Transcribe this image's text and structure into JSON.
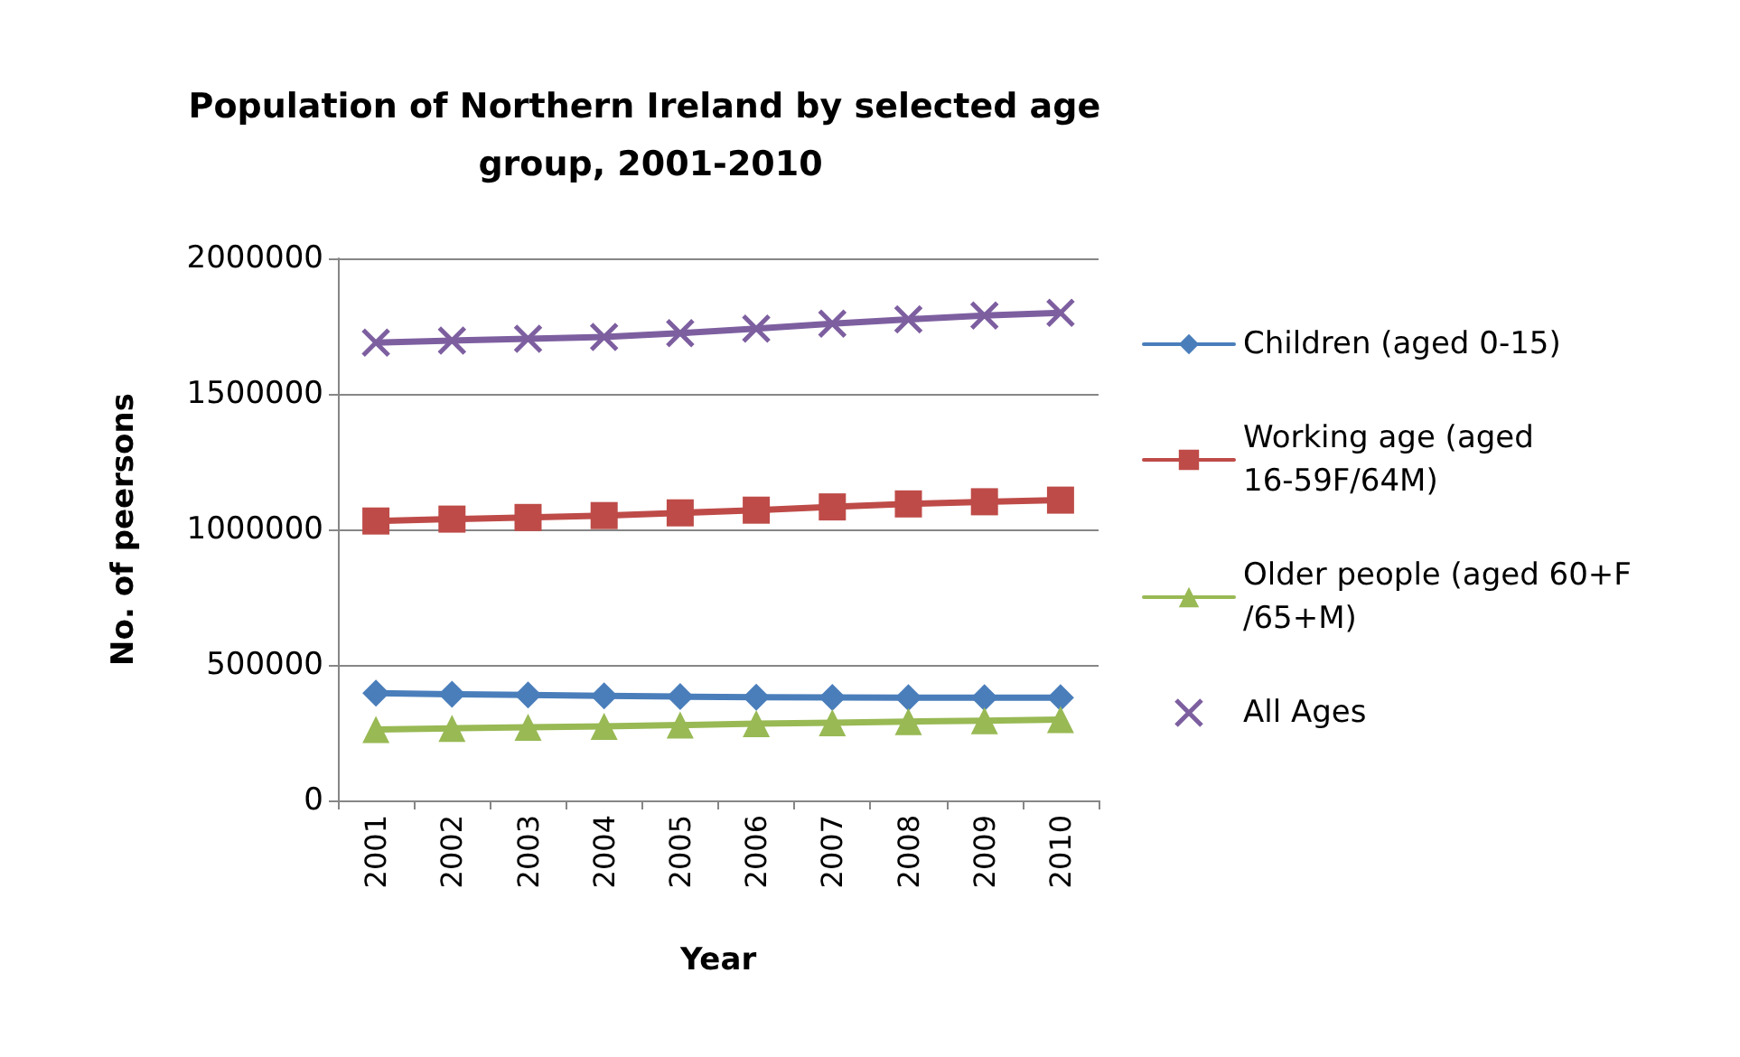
{
  "chart_data": {
    "type": "line",
    "title": "Population of Northern Ireland by selected age group, 2001-2010",
    "xlabel": "Year",
    "ylabel": "No. of peersons",
    "categories": [
      "2001",
      "2002",
      "2003",
      "2004",
      "2005",
      "2006",
      "2007",
      "2008",
      "2009",
      "2010"
    ],
    "series": [
      {
        "name": "Children (aged 0-15)",
        "color": "#4a7ebb",
        "marker": "diamond",
        "values": [
          396000,
          392000,
          389000,
          386000,
          383000,
          381000,
          380000,
          379000,
          379000,
          379000
        ]
      },
      {
        "name": "Working age (aged 16-59F/64M)",
        "color": "#be4b48",
        "marker": "square",
        "values": [
          1031000,
          1038000,
          1044000,
          1051000,
          1061000,
          1071000,
          1083000,
          1094000,
          1102000,
          1108000
        ]
      },
      {
        "name": "Older people (aged 60+F/65+M)",
        "color": "#98b954",
        "marker": "triangle",
        "values": [
          262000,
          266000,
          270000,
          273000,
          278000,
          283000,
          287000,
          291000,
          294000,
          298000
        ]
      },
      {
        "name": "All Ages",
        "color": "#7d5fa0",
        "marker": "cross",
        "values": [
          1689000,
          1697000,
          1703000,
          1710000,
          1724000,
          1741000,
          1759000,
          1775000,
          1789000,
          1799000
        ]
      }
    ],
    "ylim": [
      0,
      2000000
    ],
    "yticks": [
      0,
      500000,
      1000000,
      1500000,
      2000000
    ],
    "grid": "y",
    "legend": "right"
  }
}
